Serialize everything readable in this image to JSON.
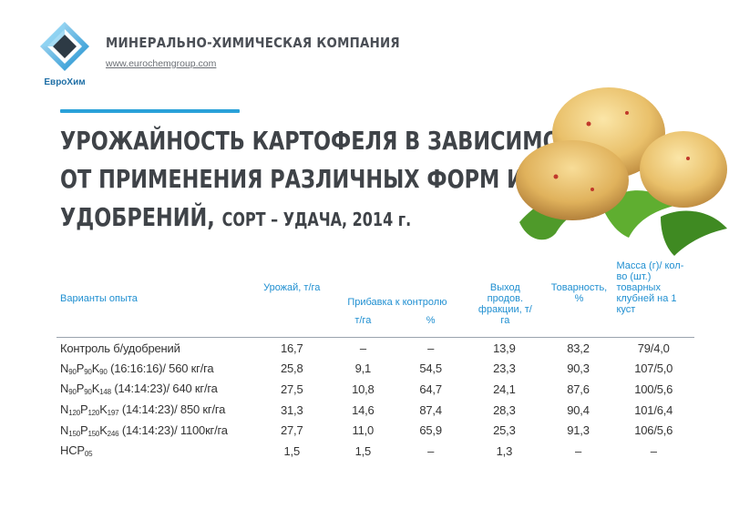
{
  "header": {
    "company": "МИНЕРАЛЬНО-ХИМИЧЕСКАЯ КОМПАНИЯ",
    "url": "www.eurochemgroup.com",
    "logo_text": "ЕвроХим"
  },
  "title": {
    "line1": "УРОЖАЙНОСТЬ КАРТОФЕЛЯ В ЗАВИСИМОСТИ",
    "line2": "ОТ ПРИМЕНЕНИЯ РАЗЛИЧНЫХ ФОРМ И ДОЗ",
    "line3_main": "УДОБРЕНИЙ,",
    "line3_sub": "СОРТ – УДАЧА, 2014 г."
  },
  "colors": {
    "accent": "#2aa1d9",
    "header_text": "#1f8fd1",
    "title_text": "#3f4348"
  },
  "table": {
    "headers": {
      "variants": "Варианты опыта",
      "yield": "Урожай, т/га",
      "increase": "Прибавка к контролю",
      "increase_tha": "т/га",
      "increase_pct": "%",
      "marketable_output": "Выход продов. фракции, т/га",
      "marketability": "Товарность, %",
      "mass_prefix": "Масса (г)/ кол-во (шт.) товарных клубней на",
      "mass_suffix": "1 куст"
    },
    "rows": [
      {
        "variant": "Контроль б/удобрений",
        "yield": "16,7",
        "inc_tha": "–",
        "inc_pct": "–",
        "output": "13,9",
        "market": "83,2",
        "mass": "79/4,0"
      },
      {
        "variant_parts": {
          "n": "N",
          "n_sub": "90",
          "p": "P",
          "p_sub": "90",
          "k": "K",
          "k_sub": "90",
          "rest": " (16:16:16)/ 560 кг/га"
        },
        "yield": "25,8",
        "inc_tha": "9,1",
        "inc_pct": "54,5",
        "output": "23,3",
        "market": "90,3",
        "mass": "107/5,0"
      },
      {
        "variant_parts": {
          "n": "N",
          "n_sub": "90",
          "p": "P",
          "p_sub": "90",
          "k": "K",
          "k_sub": "148",
          "rest": " (14:14:23)/ 640 кг/га"
        },
        "yield": "27,5",
        "inc_tha": "10,8",
        "inc_pct": "64,7",
        "output": "24,1",
        "market": "87,6",
        "mass": "100/5,6"
      },
      {
        "variant_parts": {
          "n": "N",
          "n_sub": "120",
          "p": "P",
          "p_sub": "120",
          "k": "K",
          "k_sub": "197",
          "rest": " (14:14:23)/ 850 кг/га"
        },
        "yield": "31,3",
        "inc_tha": "14,6",
        "inc_pct": "87,4",
        "output": "28,3",
        "market": "90,4",
        "mass": "101/6,4"
      },
      {
        "variant_parts": {
          "n": "N",
          "n_sub": "150",
          "p": "P",
          "p_sub": "150",
          "k": "K",
          "k_sub": "246",
          "rest": " (14:14:23)/ 1100кг/га"
        },
        "yield": "27,7",
        "inc_tha": "11,0",
        "inc_pct": "65,9",
        "output": "25,3",
        "market": "91,3",
        "mass": "106/5,6"
      },
      {
        "variant_parts": {
          "main": "НСР",
          "sub": "05"
        },
        "yield": "1,5",
        "inc_tha": "1,5",
        "inc_pct": "–",
        "output": "1,3",
        "market": "–",
        "mass": "–"
      }
    ]
  }
}
